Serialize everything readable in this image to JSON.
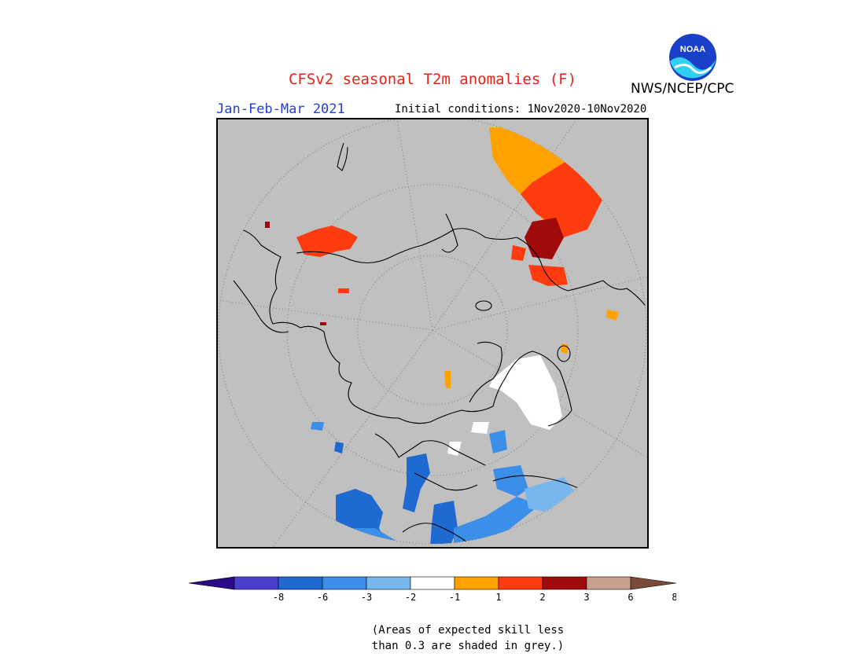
{
  "header": {
    "title": "CFSv2 seasonal T2m anomalies (F)",
    "season": "Jan-Feb-Mar 2021",
    "initial_conditions": "Initial conditions: 1Nov2020-10Nov2020",
    "agency": "NWS/NCEP/CPC",
    "logo_text": "NOAA"
  },
  "legend": {
    "colors": [
      "#2b0a8a",
      "#4a3fcc",
      "#1f6ad0",
      "#3b8fe8",
      "#78b6f0",
      "#ffffff",
      "#ffa200",
      "#ff3c10",
      "#a00a0a",
      "#c8a090",
      "#7a4a3a"
    ],
    "ticks": [
      "-8",
      "-6",
      "-3",
      "-2",
      "-1",
      "1",
      "2",
      "3",
      "6",
      "8"
    ]
  },
  "footnote": {
    "line1": "(Areas of expected skill less",
    "line2": "than 0.3 are shaded in grey.)"
  },
  "colors": {
    "title": "#e8221b",
    "season": "#2540d8",
    "skill_mask": "#c0c0c0"
  }
}
